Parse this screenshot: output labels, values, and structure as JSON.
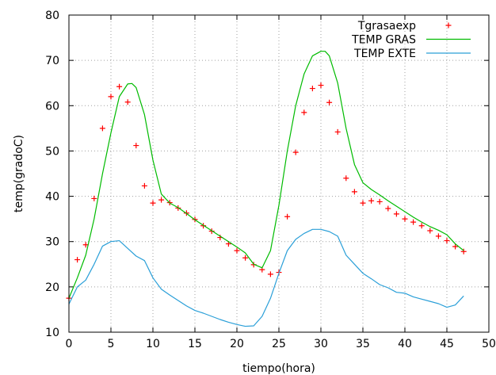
{
  "chart_data": {
    "type": "line",
    "title": "",
    "xlabel": "tiempo(hora)",
    "ylabel": "temp(gradoC)",
    "xlim": [
      0,
      50
    ],
    "ylim": [
      10,
      80
    ],
    "xticks": [
      0,
      5,
      10,
      15,
      20,
      25,
      30,
      35,
      40,
      45,
      50
    ],
    "yticks": [
      10,
      20,
      30,
      40,
      50,
      60,
      70,
      80
    ],
    "grid": true,
    "legend_position": "top-right",
    "series": [
      {
        "name": "Tgrasaexp",
        "style": "points",
        "marker": "plus",
        "color": "#ff0000",
        "x": [
          0,
          1,
          2,
          3,
          4,
          5,
          6,
          7,
          8,
          9,
          10,
          11,
          12,
          13,
          14,
          15,
          16,
          17,
          18,
          19,
          20,
          21,
          22,
          23,
          24,
          25,
          26,
          27,
          28,
          29,
          30,
          31,
          32,
          33,
          34,
          35,
          36,
          37,
          38,
          39,
          40,
          41,
          42,
          43,
          44,
          45,
          46,
          47
        ],
        "y": [
          17.5,
          26,
          29.3,
          39.5,
          55,
          62,
          64.2,
          60.8,
          51.2,
          42.3,
          38.5,
          39.2,
          38.6,
          37.4,
          36.3,
          34.9,
          33.5,
          32.3,
          30.9,
          29.5,
          28,
          26.4,
          24.9,
          23.8,
          22.8,
          23.2,
          35.5,
          49.7,
          58.5,
          63.8,
          64.5,
          60.7,
          54.2,
          44,
          41,
          38.5,
          39,
          38.8,
          37.3,
          36.1,
          35,
          34.3,
          33.5,
          32.4,
          31.2,
          30.2,
          28.9,
          27.8
        ]
      },
      {
        "name": "TEMP GRAS",
        "style": "line",
        "color": "#00bb00",
        "x": [
          0,
          1,
          2,
          3,
          4,
          5,
          6,
          7,
          7.5,
          8,
          9,
          10,
          11,
          12,
          13,
          14,
          15,
          16,
          17,
          18,
          19,
          20,
          21,
          22,
          23,
          24,
          25,
          26,
          27,
          28,
          29,
          30,
          30.5,
          31,
          32,
          33,
          34,
          35,
          36,
          37,
          38,
          39,
          40,
          41,
          42,
          43,
          44,
          45,
          46,
          47
        ],
        "y": [
          17.5,
          22,
          27,
          35,
          45,
          54,
          62,
          64.8,
          64.9,
          64,
          58,
          48,
          40.5,
          38.5,
          37.5,
          36.2,
          34.8,
          33.6,
          32.4,
          31.2,
          30,
          28.8,
          27.5,
          25,
          24.2,
          28,
          38,
          50,
          60,
          67,
          71,
          72,
          72,
          71,
          65,
          55,
          47,
          43,
          41.5,
          40.3,
          39,
          37.8,
          36.6,
          35.4,
          34.3,
          33.3,
          32.5,
          31.5,
          29.5,
          28
        ]
      },
      {
        "name": "TEMP EXTE",
        "style": "line",
        "color": "#2a9fd8",
        "x": [
          0,
          1,
          2,
          3,
          4,
          5,
          6,
          7,
          8,
          9,
          10,
          11,
          12,
          13,
          14,
          15,
          16,
          17,
          18,
          19,
          20,
          21,
          22,
          23,
          24,
          25,
          26,
          27,
          28,
          29,
          30,
          31,
          32,
          33,
          34,
          35,
          36,
          37,
          38,
          39,
          40,
          41,
          42,
          43,
          44,
          45,
          46,
          47
        ],
        "y": [
          16.2,
          20,
          21.5,
          25,
          29,
          30,
          30.2,
          28.5,
          26.8,
          25.8,
          22,
          19.5,
          18.2,
          17,
          15.8,
          14.8,
          14.2,
          13.5,
          12.8,
          12.2,
          11.7,
          11.3,
          11.4,
          13.5,
          17.5,
          23,
          28,
          30.5,
          31.8,
          32.7,
          32.7,
          32.2,
          31.2,
          27,
          25,
          23,
          21.8,
          20.5,
          19.8,
          18.8,
          18.6,
          17.8,
          17.3,
          16.8,
          16.3,
          15.5,
          16,
          18
        ]
      }
    ]
  }
}
